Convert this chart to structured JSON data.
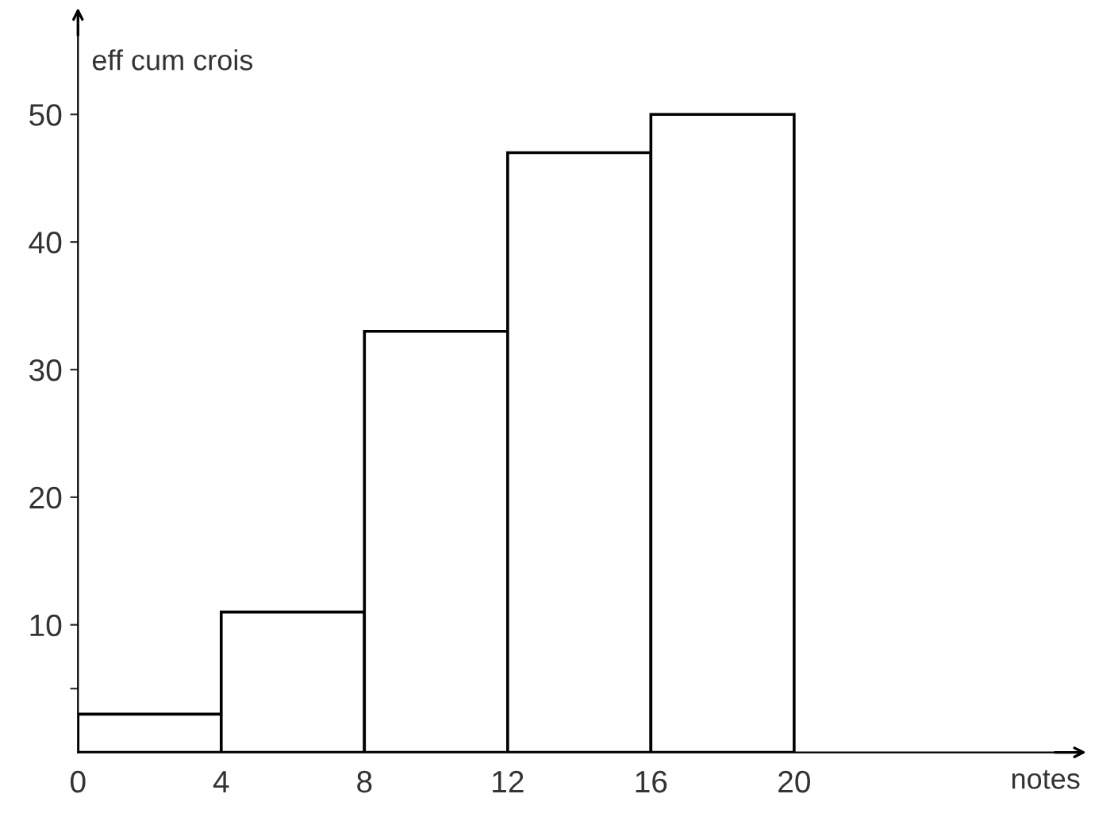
{
  "chart_data": {
    "type": "histogram",
    "xlabel": "notes",
    "ylabel": "eff cum crois",
    "bins": [
      0,
      4,
      8,
      12,
      16,
      20
    ],
    "values": [
      3,
      11,
      33,
      47,
      50
    ],
    "color": "#ffffff",
    "xlim": [
      0,
      28
    ],
    "ylim": [
      0,
      57
    ],
    "xticks": [
      0,
      4,
      8,
      12,
      16,
      20
    ],
    "yticks": [
      {
        "value": 5,
        "label": null
      },
      10,
      20,
      30,
      40,
      50
    ],
    "grid": false,
    "legend": false
  }
}
